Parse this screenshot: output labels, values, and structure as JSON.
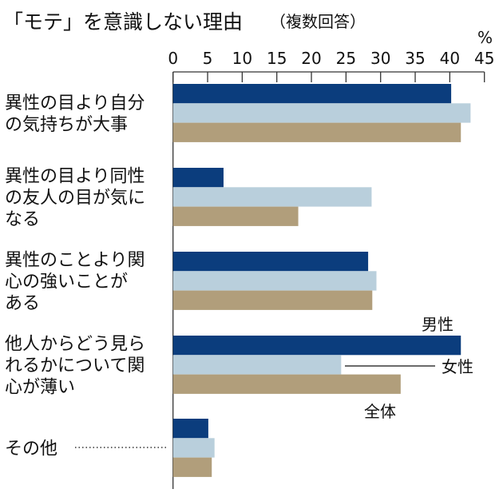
{
  "chart_data": {
    "type": "bar",
    "orientation": "horizontal",
    "title": "「モテ」を意識しない理由",
    "subtitle": "（複数回答）",
    "unit": "%",
    "xlim": [
      0,
      45
    ],
    "ticks": [
      "0",
      "5",
      "10",
      "15",
      "20",
      "25",
      "30",
      "35",
      "40",
      "45"
    ],
    "categories": [
      [
        "異性の目より自分",
        "の気持ちが大事"
      ],
      [
        "異性の目より同性",
        "の友人の目が気に",
        "なる"
      ],
      [
        "異性のことより関",
        "心の強いことが",
        "ある"
      ],
      [
        "他人からどう見ら",
        "れるかについて関",
        "心が薄い"
      ],
      [
        "その他"
      ]
    ],
    "series": [
      {
        "name": "男性",
        "color": "#0b3d7d",
        "values": [
          40.2,
          7.3,
          28.2,
          41.6,
          5.1
        ]
      },
      {
        "name": "女性",
        "color": "#b9cfdc",
        "values": [
          43.0,
          28.7,
          29.4,
          24.3,
          6.0
        ]
      },
      {
        "name": "全体",
        "color": "#b19e7b",
        "values": [
          41.6,
          18.1,
          28.8,
          32.9,
          5.6
        ]
      }
    ],
    "legend": "inline-labels",
    "grid": false
  }
}
